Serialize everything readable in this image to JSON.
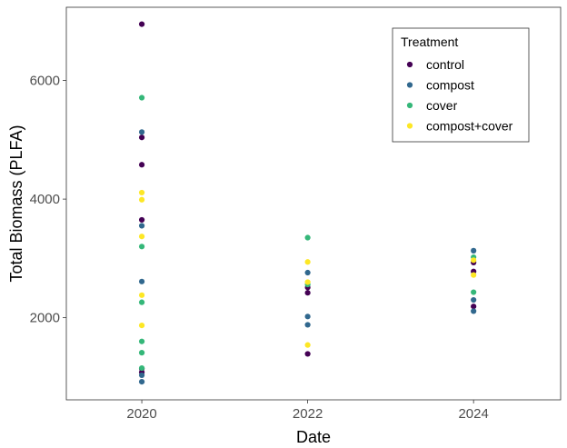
{
  "chart_data": {
    "type": "scatter",
    "xlabel": "Date",
    "ylabel": "Total Biomass (PLFA)",
    "x_ticks": [
      2020,
      2022,
      2024
    ],
    "y_ticks": [
      2000,
      4000,
      6000
    ],
    "xlim": [
      2019.09,
      2025.05
    ],
    "ylim": [
      615,
      7235
    ],
    "grid": false,
    "legend": {
      "title": "Treatment",
      "position": "top-right",
      "entries": [
        "control",
        "compost",
        "cover",
        "compost+cover"
      ]
    },
    "series": [
      {
        "name": "control",
        "color": "#440154",
        "points": [
          {
            "x": 2020,
            "y": 6950
          },
          {
            "x": 2020,
            "y": 5040
          },
          {
            "x": 2020,
            "y": 4580
          },
          {
            "x": 2020,
            "y": 3650
          },
          {
            "x": 2020,
            "y": 1140
          },
          {
            "x": 2020,
            "y": 1080
          },
          {
            "x": 2022,
            "y": 2510
          },
          {
            "x": 2022,
            "y": 2420
          },
          {
            "x": 2022,
            "y": 1390
          },
          {
            "x": 2024,
            "y": 2930
          },
          {
            "x": 2024,
            "y": 2780
          },
          {
            "x": 2024,
            "y": 2190
          }
        ]
      },
      {
        "name": "compost",
        "color": "#31688E",
        "points": [
          {
            "x": 2020,
            "y": 5130
          },
          {
            "x": 2020,
            "y": 3550
          },
          {
            "x": 2020,
            "y": 2610
          },
          {
            "x": 2020,
            "y": 1030
          },
          {
            "x": 2020,
            "y": 920
          },
          {
            "x": 2022,
            "y": 2760
          },
          {
            "x": 2022,
            "y": 2020
          },
          {
            "x": 2022,
            "y": 1880
          },
          {
            "x": 2024,
            "y": 3130
          },
          {
            "x": 2024,
            "y": 2300
          },
          {
            "x": 2024,
            "y": 2110
          }
        ]
      },
      {
        "name": "cover",
        "color": "#35B779",
        "points": [
          {
            "x": 2020,
            "y": 5710
          },
          {
            "x": 2020,
            "y": 3200
          },
          {
            "x": 2020,
            "y": 2260
          },
          {
            "x": 2020,
            "y": 1600
          },
          {
            "x": 2020,
            "y": 1410
          },
          {
            "x": 2020,
            "y": 1150
          },
          {
            "x": 2022,
            "y": 3350
          },
          {
            "x": 2022,
            "y": 2560
          },
          {
            "x": 2024,
            "y": 3020
          },
          {
            "x": 2024,
            "y": 2430
          }
        ]
      },
      {
        "name": "compost+cover",
        "color": "#FDE725",
        "points": [
          {
            "x": 2020,
            "y": 4110
          },
          {
            "x": 2020,
            "y": 3990
          },
          {
            "x": 2020,
            "y": 3370
          },
          {
            "x": 2020,
            "y": 2380
          },
          {
            "x": 2020,
            "y": 1870
          },
          {
            "x": 2022,
            "y": 2940
          },
          {
            "x": 2022,
            "y": 2600
          },
          {
            "x": 2022,
            "y": 1540
          },
          {
            "x": 2024,
            "y": 2970
          },
          {
            "x": 2024,
            "y": 2720
          }
        ]
      }
    ]
  }
}
